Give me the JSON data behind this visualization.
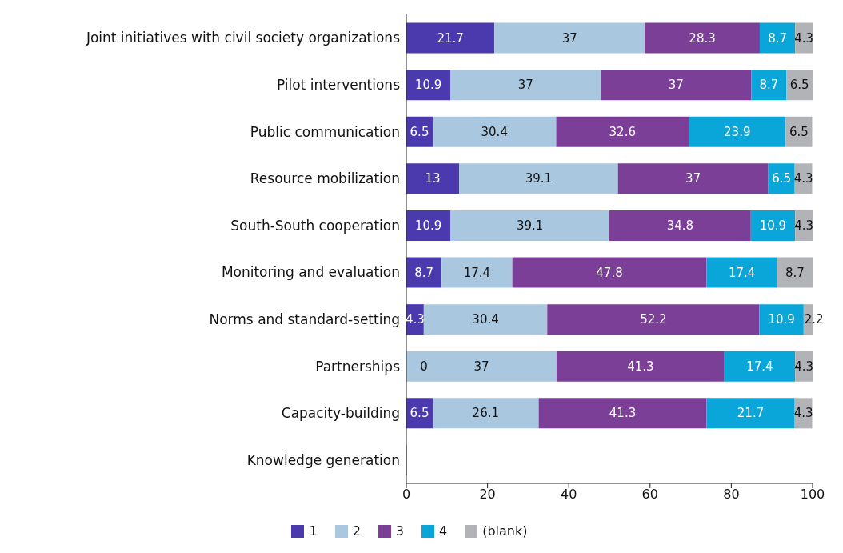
{
  "chart_data": {
    "type": "bar",
    "orientation": "horizontal",
    "stacked": true,
    "data_labels": true,
    "legend": "bottom",
    "grid": false,
    "categories": [
      "Joint initiatives with civil society organizations",
      "Pilot interventions",
      "Public communication",
      "Resource mobilization",
      "South-South cooperation",
      "Monitoring and evaluation",
      "Norms and standard-setting",
      "Partnerships",
      "Capacity-building",
      "Knowledge generation"
    ],
    "xlim": [
      0,
      100
    ],
    "xticks": [
      0,
      20,
      40,
      60,
      80,
      100
    ],
    "series": [
      {
        "name": "1",
        "color": "#4a3aad",
        "values": [
          21.7,
          10.9,
          6.5,
          13,
          10.9,
          8.7,
          4.3,
          0,
          6.5,
          null
        ]
      },
      {
        "name": "2",
        "color": "#a9c8e0",
        "values": [
          37,
          37,
          30.4,
          39.1,
          39.1,
          17.4,
          30.4,
          37,
          26.1,
          null
        ]
      },
      {
        "name": "3",
        "color": "#7b3f98",
        "values": [
          28.3,
          37,
          32.6,
          37,
          34.8,
          47.8,
          52.2,
          41.3,
          41.3,
          null
        ]
      },
      {
        "name": "4",
        "color": "#0aa6d9",
        "values": [
          8.7,
          8.7,
          23.9,
          6.5,
          10.9,
          17.4,
          10.9,
          17.4,
          21.7,
          null
        ]
      },
      {
        "name": "(blank)",
        "color": "#b1b3b6",
        "values": [
          4.3,
          6.5,
          6.5,
          4.3,
          4.3,
          8.7,
          2.2,
          4.3,
          4.3,
          null
        ]
      }
    ]
  }
}
